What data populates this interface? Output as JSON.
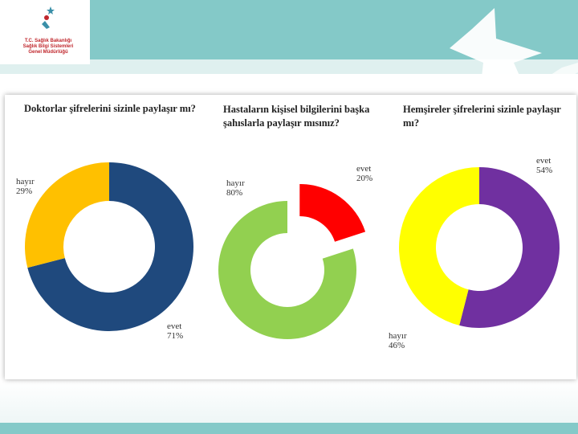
{
  "logo": {
    "line1": "T.C. Sağlık Bakanlığı",
    "line2": "Sağlık Bilgi Sistemleri",
    "line3": "Genel Müdürlüğü"
  },
  "colors": {
    "teal": "#84c9c8",
    "navy": "#1f497d",
    "amber": "#ffc000",
    "green": "#92d050",
    "red": "#ff0000",
    "yellow": "#ffff00",
    "purple": "#7030a0"
  },
  "chart_data": [
    {
      "type": "pie",
      "title": "Doktorlar şifrelerini sizinle paylaşır mı?",
      "slices": [
        {
          "label": "evet",
          "value": 71,
          "value_label": "71%",
          "color": "#1f497d"
        },
        {
          "label": "hayır",
          "value": 29,
          "value_label": "29%",
          "color": "#ffc000"
        }
      ]
    },
    {
      "type": "pie",
      "title_lines": [
        "Hastaların kişisel bilgilerini başka",
        "şahıslarla paylaşır mısınız?"
      ],
      "slices": [
        {
          "label": "evet",
          "value": 20,
          "value_label": "20%",
          "color": "#ff0000"
        },
        {
          "label": "hayır",
          "value": 80,
          "value_label": "80%",
          "color": "#92d050"
        }
      ]
    },
    {
      "type": "pie",
      "title_lines": [
        "Hemşireler şifrelerini sizinle paylaşır",
        "mı?"
      ],
      "slices": [
        {
          "label": "evet",
          "value": 54,
          "value_label": "54%",
          "color": "#7030a0"
        },
        {
          "label": "hayır",
          "value": 46,
          "value_label": "46%",
          "color": "#ffff00"
        }
      ]
    }
  ]
}
